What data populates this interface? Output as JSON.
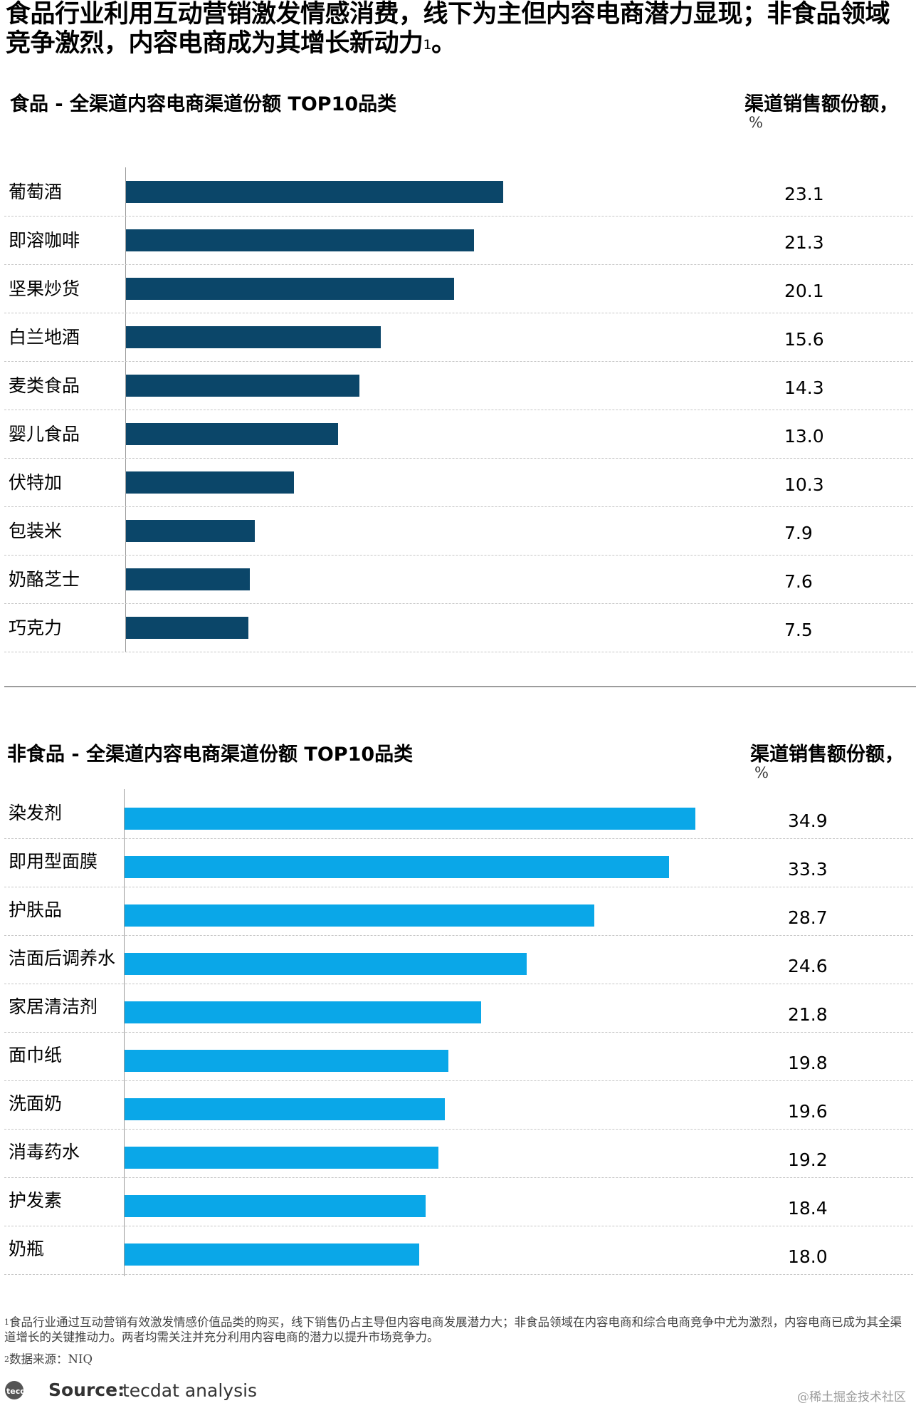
{
  "headline": {
    "text": "食品行业利用互动营销激发情感消费，线下为主但内容电商潜力显现；非食品领域竞争激烈，内容电商成为其增长新动力",
    "footnote_ref": "1"
  },
  "sections": [
    {
      "title": "食品 - 全渠道内容电商渠道份额 TOP10品类",
      "unit_label": "渠道销售额份额，",
      "unit_pct": "%",
      "color": "#0b4669"
    },
    {
      "title": "非食品 - 全渠道内容电商渠道份额 TOP10品类",
      "unit_label": "渠道销售额份额，",
      "unit_pct": "%",
      "color": "#0aa7e8"
    }
  ],
  "chart_data": [
    {
      "type": "bar",
      "orientation": "horizontal",
      "title": "食品 - 全渠道内容电商渠道份额 TOP10品类",
      "unit": "渠道销售额份额，%",
      "categories": [
        "葡萄酒",
        "即溶咖啡",
        "坚果炒货",
        "白兰地酒",
        "麦类食品",
        "婴儿食品",
        "伏特加",
        "包装米",
        "奶酪芝士",
        "巧克力"
      ],
      "values": [
        23.1,
        21.3,
        20.1,
        15.6,
        14.3,
        13.0,
        10.3,
        7.9,
        7.6,
        7.5
      ],
      "value_labels": [
        "23.1",
        "21.3",
        "20.1",
        "15.6",
        "14.3",
        "13.0",
        "10.3",
        "7.9",
        "7.6",
        "7.5"
      ],
      "xlim": [
        0,
        35
      ],
      "grid": false
    },
    {
      "type": "bar",
      "orientation": "horizontal",
      "title": "非食品 - 全渠道内容电商渠道份额 TOP10品类",
      "unit": "渠道销售额份额，%",
      "categories": [
        "染发剂",
        "即用型面膜",
        "护肤品",
        "洁面后调养水",
        "家居清洁剂",
        "面巾纸",
        "洗面奶",
        "消毒药水",
        "护发素",
        "奶瓶"
      ],
      "values": [
        34.9,
        33.3,
        28.7,
        24.6,
        21.8,
        19.8,
        19.6,
        19.2,
        18.4,
        18.0
      ],
      "value_labels": [
        "34.9",
        "33.3",
        "28.7",
        "24.6",
        "21.8",
        "19.8",
        "19.6",
        "19.2",
        "18.4",
        "18.0"
      ],
      "xlim": [
        0,
        35
      ],
      "grid": false
    }
  ],
  "footnotes": {
    "note1_marker": "1",
    "note1": "食品行业通过互动营销有效激发情感价值品类的购买，线下销售仍占主导但内容电商发展潜力大；非食品领域在内容电商和综合电商竞争中尤为激烈，内容电商已成为其全渠道增长的关键推动力。两者均需关注并充分利用内容电商的潜力以提升市场竞争力。",
    "note2_marker": "2",
    "note2": "数据来源：NIQ"
  },
  "source": {
    "logo_text": "tecdat",
    "label": "Source:",
    "text": "tecdat analysis"
  },
  "watermark": "@稀土掘金技术社区"
}
